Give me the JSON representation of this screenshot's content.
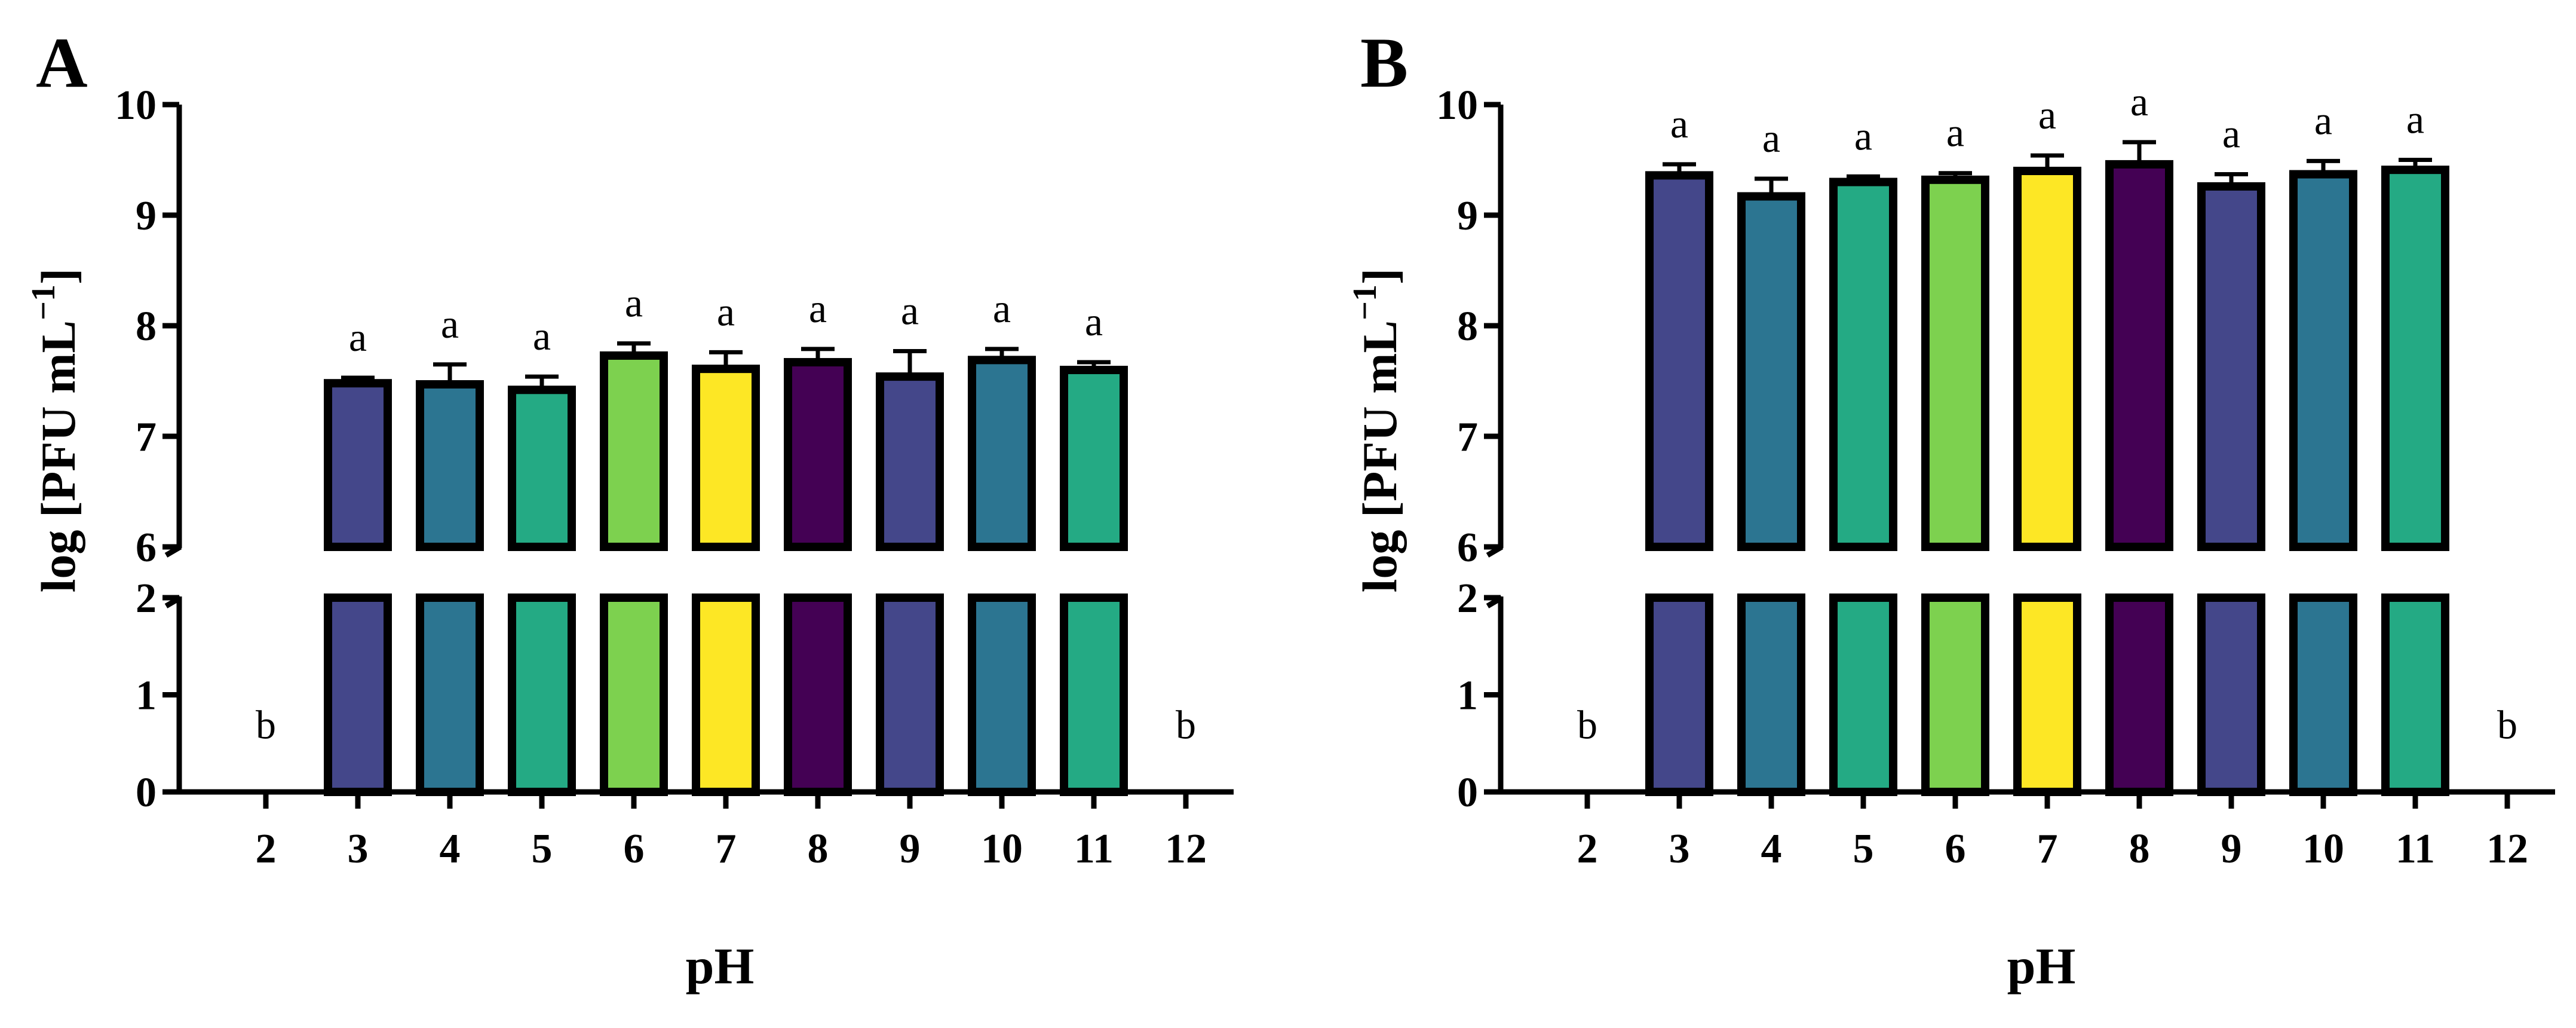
{
  "chart_data": [
    {
      "panel_label": "A",
      "type": "bar",
      "xlabel": "pH",
      "ylabel_main": "log [PFU mL",
      "ylabel_sup": "−1",
      "ylabel_close": "]",
      "y_axis": "broken",
      "y_lower_segment": [
        0,
        2
      ],
      "y_upper_segment": [
        6,
        10
      ],
      "y_lower_ticks": [
        "0",
        "1",
        "2"
      ],
      "y_upper_ticks": [
        "6",
        "7",
        "8",
        "9",
        "10"
      ],
      "categories": [
        "2",
        "3",
        "4",
        "5",
        "6",
        "7",
        "8",
        "9",
        "10",
        "11",
        "12"
      ],
      "values": [
        0,
        7.48,
        7.47,
        7.42,
        7.73,
        7.61,
        7.67,
        7.54,
        7.69,
        7.6,
        0
      ],
      "errors": [
        0,
        0.05,
        0.18,
        0.12,
        0.11,
        0.15,
        0.12,
        0.23,
        0.1,
        0.07,
        0
      ],
      "annotations": [
        "b",
        "a",
        "a",
        "a",
        "a",
        "a",
        "a",
        "a",
        "a",
        "a",
        "b"
      ]
    },
    {
      "panel_label": "B",
      "type": "bar",
      "xlabel": "pH",
      "ylabel_main": "log [PFU mL",
      "ylabel_sup": "−1",
      "ylabel_close": "]",
      "y_axis": "broken",
      "y_lower_segment": [
        0,
        2
      ],
      "y_upper_segment": [
        6,
        10
      ],
      "y_lower_ticks": [
        "0",
        "1",
        "2"
      ],
      "y_upper_ticks": [
        "6",
        "7",
        "8",
        "9",
        "10"
      ],
      "categories": [
        "2",
        "3",
        "4",
        "5",
        "6",
        "7",
        "8",
        "9",
        "10",
        "11",
        "12"
      ],
      "values": [
        0,
        9.36,
        9.17,
        9.3,
        9.32,
        9.4,
        9.46,
        9.26,
        9.37,
        9.41,
        0
      ],
      "errors": [
        0,
        0.1,
        0.16,
        0.05,
        0.06,
        0.14,
        0.2,
        0.11,
        0.12,
        0.09,
        0
      ],
      "annotations": [
        "b",
        "a",
        "a",
        "a",
        "a",
        "a",
        "a",
        "a",
        "a",
        "a",
        "b"
      ]
    }
  ],
  "colors": {
    "bar_palette": [
      "#44478a",
      "#44478a",
      "#2c7591",
      "#24aa84",
      "#7dd14f",
      "#fde725",
      "#440154",
      "#44478a",
      "#2c7591",
      "#24aa84",
      "#24aa84"
    ],
    "axis": "#000000"
  }
}
